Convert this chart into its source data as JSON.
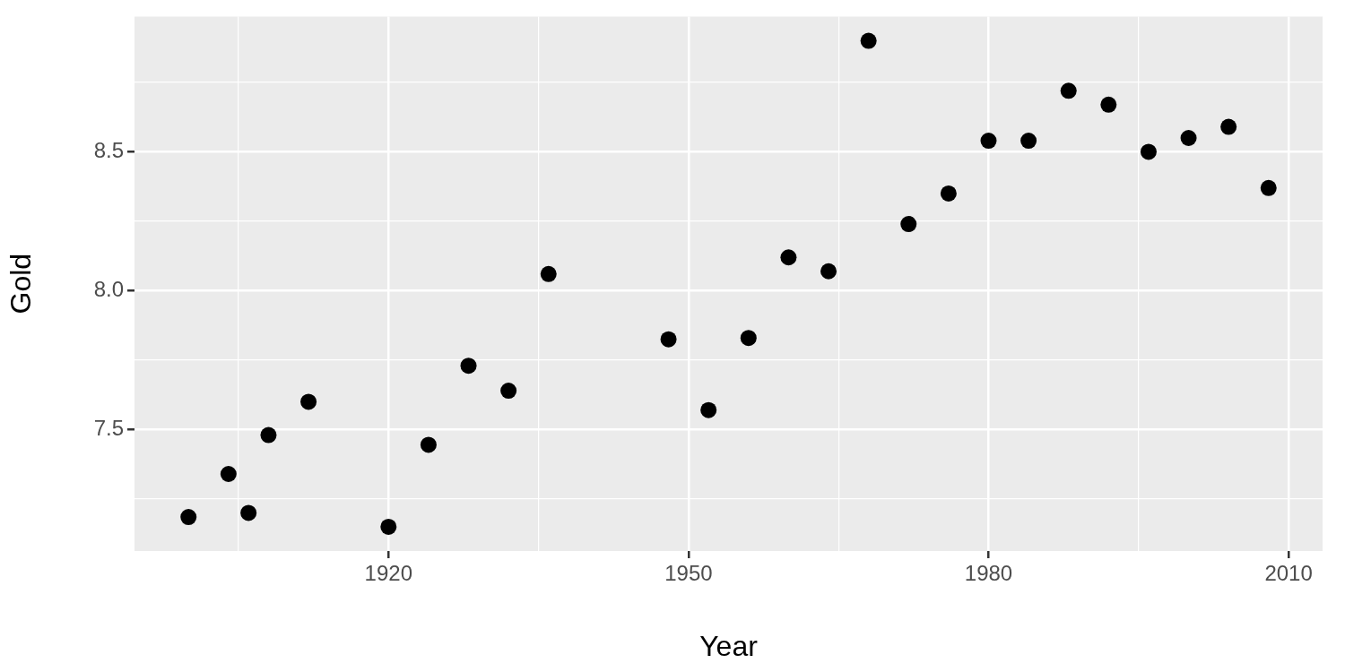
{
  "chart_data": {
    "type": "scatter",
    "xlabel": "Year",
    "ylabel": "Gold",
    "marker": "circle",
    "grid": true,
    "legend": false,
    "x": [
      1900,
      1904,
      1906,
      1908,
      1912,
      1920,
      1924,
      1928,
      1932,
      1936,
      1948,
      1952,
      1956,
      1960,
      1964,
      1968,
      1972,
      1976,
      1980,
      1984,
      1988,
      1992,
      1996,
      2000,
      2004,
      2008
    ],
    "series": [
      {
        "color": "#000000",
        "values": [
          7.185,
          7.34,
          7.2,
          7.48,
          7.6,
          7.15,
          7.445,
          7.73,
          7.64,
          8.06,
          7.825,
          7.57,
          7.83,
          8.12,
          8.07,
          8.9,
          8.24,
          8.35,
          8.54,
          8.54,
          8.72,
          8.67,
          8.5,
          8.55,
          8.59,
          8.37
        ]
      }
    ],
    "xlim": [
      1894.6,
      2013.4
    ],
    "xticks": [
      {
        "value": 1905,
        "label": null
      },
      1920,
      {
        "value": 1935,
        "label": null
      },
      1950,
      {
        "value": 1965,
        "label": null
      },
      1980,
      {
        "value": 1995,
        "label": null
      },
      2010
    ],
    "ylim": [
      7.0625,
      8.9875
    ],
    "yticks": [
      {
        "value": 7.25,
        "label": null
      },
      7.5,
      {
        "value": 7.75,
        "label": null
      },
      {
        "value": 8,
        "label": "8.0"
      },
      {
        "value": 8.25,
        "label": null
      },
      8.5,
      {
        "value": 8.75,
        "label": null
      }
    ]
  }
}
